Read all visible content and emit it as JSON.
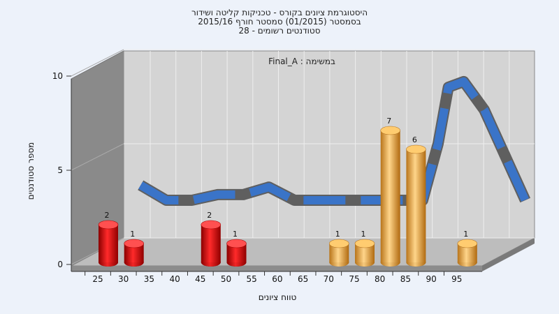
{
  "chart_data": {
    "type": "bar",
    "title_lines": [
      "היסטוגרמת ציונים בקורס - טכניקות קליטה ושידור",
      "בסמסטר  (01/2015)  סמסטר חורף 2015/16",
      "סטודנטים רשומים - 28"
    ],
    "subtitle": "במשימה : Final_A",
    "xlabel": "טווח ציונים",
    "ylabel": "מספר סטודנטים",
    "ylim": [
      0,
      10
    ],
    "y_ticks": [
      "0",
      "5",
      "10"
    ],
    "x_ticks": [
      "25",
      "30",
      "35",
      "40",
      "45",
      "50",
      "55",
      "60",
      "65",
      "70",
      "75",
      "80",
      "85",
      "90",
      "95"
    ],
    "bars": [
      {
        "x": 25,
        "value": 2,
        "label": "2",
        "color": "#e02020"
      },
      {
        "x": 30,
        "value": 1,
        "label": "1",
        "color": "#e02020"
      },
      {
        "x": 45,
        "value": 2,
        "label": "2",
        "color": "#e02020"
      },
      {
        "x": 50,
        "value": 1,
        "label": "1",
        "color": "#e02020"
      },
      {
        "x": 70,
        "value": 1,
        "label": "1",
        "color": "#e8a030"
      },
      {
        "x": 75,
        "value": 1,
        "label": "1",
        "color": "#e8a030"
      },
      {
        "x": 80,
        "value": 7,
        "label": "7",
        "color": "#e8a030"
      },
      {
        "x": 85,
        "value": 6,
        "label": "6",
        "color": "#e8a030"
      },
      {
        "x": 95,
        "value": 1,
        "label": "1",
        "color": "#e8a030"
      }
    ],
    "curve_color": "#3a74c8",
    "grid": true
  }
}
